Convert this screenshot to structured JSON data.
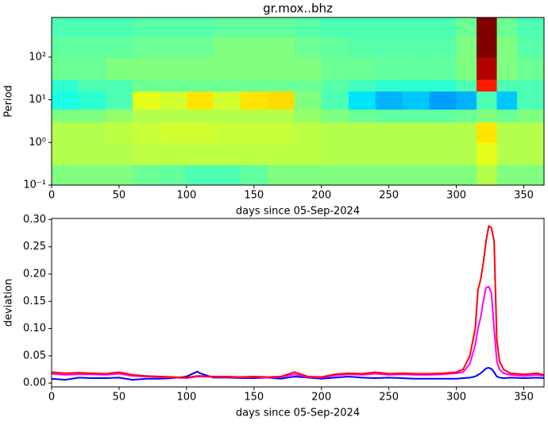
{
  "chart_data": [
    {
      "type": "heatmap",
      "title": "gr.mox..bhz",
      "xlabel": "days since 05-Sep-2024",
      "ylabel": "Period",
      "colormap": "jet",
      "log_y": true,
      "x_edges": [
        0,
        20,
        40,
        60,
        80,
        100,
        120,
        140,
        160,
        180,
        200,
        220,
        240,
        260,
        280,
        300,
        315,
        330,
        345,
        365
      ],
      "y_edges": [
        0.1,
        0.3,
        1,
        3,
        6,
        16,
        30,
        100,
        300,
        850
      ],
      "z": [
        [
          0.5,
          0.5,
          0.5,
          0.48,
          0.47,
          0.45,
          0.45,
          0.47,
          0.5,
          0.5,
          0.5,
          0.5,
          0.5,
          0.5,
          0.5,
          0.5,
          0.55,
          0.5,
          0.5
        ],
        [
          0.55,
          0.55,
          0.55,
          0.56,
          0.56,
          0.56,
          0.56,
          0.56,
          0.56,
          0.56,
          0.55,
          0.55,
          0.55,
          0.55,
          0.55,
          0.55,
          0.6,
          0.55,
          0.55
        ],
        [
          0.55,
          0.55,
          0.56,
          0.57,
          0.58,
          0.58,
          0.57,
          0.57,
          0.57,
          0.56,
          0.55,
          0.55,
          0.55,
          0.55,
          0.55,
          0.55,
          0.65,
          0.55,
          0.55
        ],
        [
          0.5,
          0.5,
          0.52,
          0.55,
          0.55,
          0.55,
          0.55,
          0.55,
          0.55,
          0.52,
          0.5,
          0.48,
          0.47,
          0.47,
          0.47,
          0.48,
          0.5,
          0.48,
          0.5
        ],
        [
          0.4,
          0.42,
          0.45,
          0.6,
          0.58,
          0.65,
          0.58,
          0.65,
          0.66,
          0.5,
          0.45,
          0.35,
          0.3,
          0.32,
          0.28,
          0.3,
          0.45,
          0.32,
          0.45
        ],
        [
          0.42,
          0.45,
          0.45,
          0.48,
          0.48,
          0.48,
          0.48,
          0.48,
          0.48,
          0.48,
          0.46,
          0.44,
          0.42,
          0.42,
          0.42,
          0.45,
          0.85,
          0.45,
          0.45
        ],
        [
          0.48,
          0.48,
          0.5,
          0.5,
          0.5,
          0.5,
          0.5,
          0.5,
          0.5,
          0.5,
          0.48,
          0.48,
          0.47,
          0.47,
          0.47,
          0.5,
          0.95,
          0.5,
          0.48
        ],
        [
          0.47,
          0.47,
          0.47,
          0.48,
          0.48,
          0.48,
          0.5,
          0.5,
          0.5,
          0.48,
          0.47,
          0.46,
          0.46,
          0.46,
          0.46,
          0.5,
          1.0,
          0.5,
          0.46
        ],
        [
          0.45,
          0.45,
          0.45,
          0.46,
          0.46,
          0.46,
          0.47,
          0.47,
          0.47,
          0.46,
          0.45,
          0.45,
          0.45,
          0.45,
          0.45,
          0.48,
          1.0,
          0.48,
          0.45
        ]
      ],
      "xlim": [
        0,
        365
      ],
      "xticks": [
        0,
        50,
        100,
        150,
        200,
        250,
        300,
        350
      ],
      "ylim": [
        0.1,
        850
      ],
      "yticks": [
        {
          "value": 0.1,
          "label": "10⁻¹"
        },
        {
          "value": 1,
          "label": "10⁰"
        },
        {
          "value": 10,
          "label": "10¹"
        },
        {
          "value": 100,
          "label": "10²"
        }
      ]
    },
    {
      "type": "line",
      "xlabel": "days since 05-Sep-2024",
      "ylabel": "deviation",
      "x": [
        0,
        10,
        20,
        30,
        40,
        50,
        60,
        70,
        80,
        90,
        100,
        108,
        110,
        120,
        130,
        140,
        150,
        160,
        170,
        180,
        190,
        200,
        210,
        220,
        230,
        240,
        250,
        260,
        270,
        280,
        290,
        300,
        305,
        310,
        314,
        316,
        318,
        320,
        322,
        324,
        326,
        328,
        330,
        332,
        335,
        340,
        350,
        360,
        365
      ],
      "series": [
        {
          "color": "#0000ff",
          "values": [
            0.008,
            0.006,
            0.01,
            0.009,
            0.009,
            0.01,
            0.006,
            0.008,
            0.008,
            0.009,
            0.012,
            0.021,
            0.018,
            0.01,
            0.01,
            0.009,
            0.009,
            0.01,
            0.008,
            0.012,
            0.01,
            0.008,
            0.01,
            0.012,
            0.01,
            0.009,
            0.01,
            0.009,
            0.008,
            0.008,
            0.008,
            0.008,
            0.009,
            0.01,
            0.012,
            0.015,
            0.018,
            0.022,
            0.027,
            0.028,
            0.026,
            0.02,
            0.012,
            0.01,
            0.009,
            0.01,
            0.009,
            0.01,
            0.009
          ]
        },
        {
          "color": "#ff00ff",
          "values": [
            0.017,
            0.015,
            0.016,
            0.016,
            0.015,
            0.017,
            0.013,
            0.012,
            0.011,
            0.01,
            0.009,
            0.012,
            0.012,
            0.011,
            0.011,
            0.01,
            0.011,
            0.01,
            0.011,
            0.016,
            0.011,
            0.01,
            0.014,
            0.016,
            0.015,
            0.017,
            0.015,
            0.016,
            0.015,
            0.015,
            0.016,
            0.018,
            0.02,
            0.035,
            0.07,
            0.1,
            0.12,
            0.15,
            0.175,
            0.177,
            0.165,
            0.1,
            0.04,
            0.025,
            0.018,
            0.015,
            0.013,
            0.015,
            0.013
          ]
        },
        {
          "color": "#ff0000",
          "values": [
            0.02,
            0.018,
            0.019,
            0.018,
            0.017,
            0.02,
            0.015,
            0.013,
            0.012,
            0.011,
            0.01,
            0.013,
            0.013,
            0.012,
            0.012,
            0.011,
            0.012,
            0.011,
            0.012,
            0.02,
            0.012,
            0.011,
            0.016,
            0.018,
            0.017,
            0.02,
            0.017,
            0.018,
            0.017,
            0.017,
            0.018,
            0.02,
            0.025,
            0.05,
            0.1,
            0.17,
            0.19,
            0.22,
            0.26,
            0.288,
            0.285,
            0.26,
            0.08,
            0.04,
            0.025,
            0.018,
            0.016,
            0.018,
            0.015
          ]
        }
      ],
      "xlim": [
        0,
        365
      ],
      "xticks": [
        0,
        50,
        100,
        150,
        200,
        250,
        300,
        350
      ],
      "ylim": [
        -0.007,
        0.302
      ],
      "yticks": [
        {
          "value": 0,
          "label": "0.00"
        },
        {
          "value": 0.05,
          "label": "0.05"
        },
        {
          "value": 0.1,
          "label": "0.10"
        },
        {
          "value": 0.15,
          "label": "0.15"
        },
        {
          "value": 0.2,
          "label": "0.20"
        },
        {
          "value": 0.25,
          "label": "0.25"
        },
        {
          "value": 0.3,
          "label": "0.30"
        }
      ]
    }
  ]
}
